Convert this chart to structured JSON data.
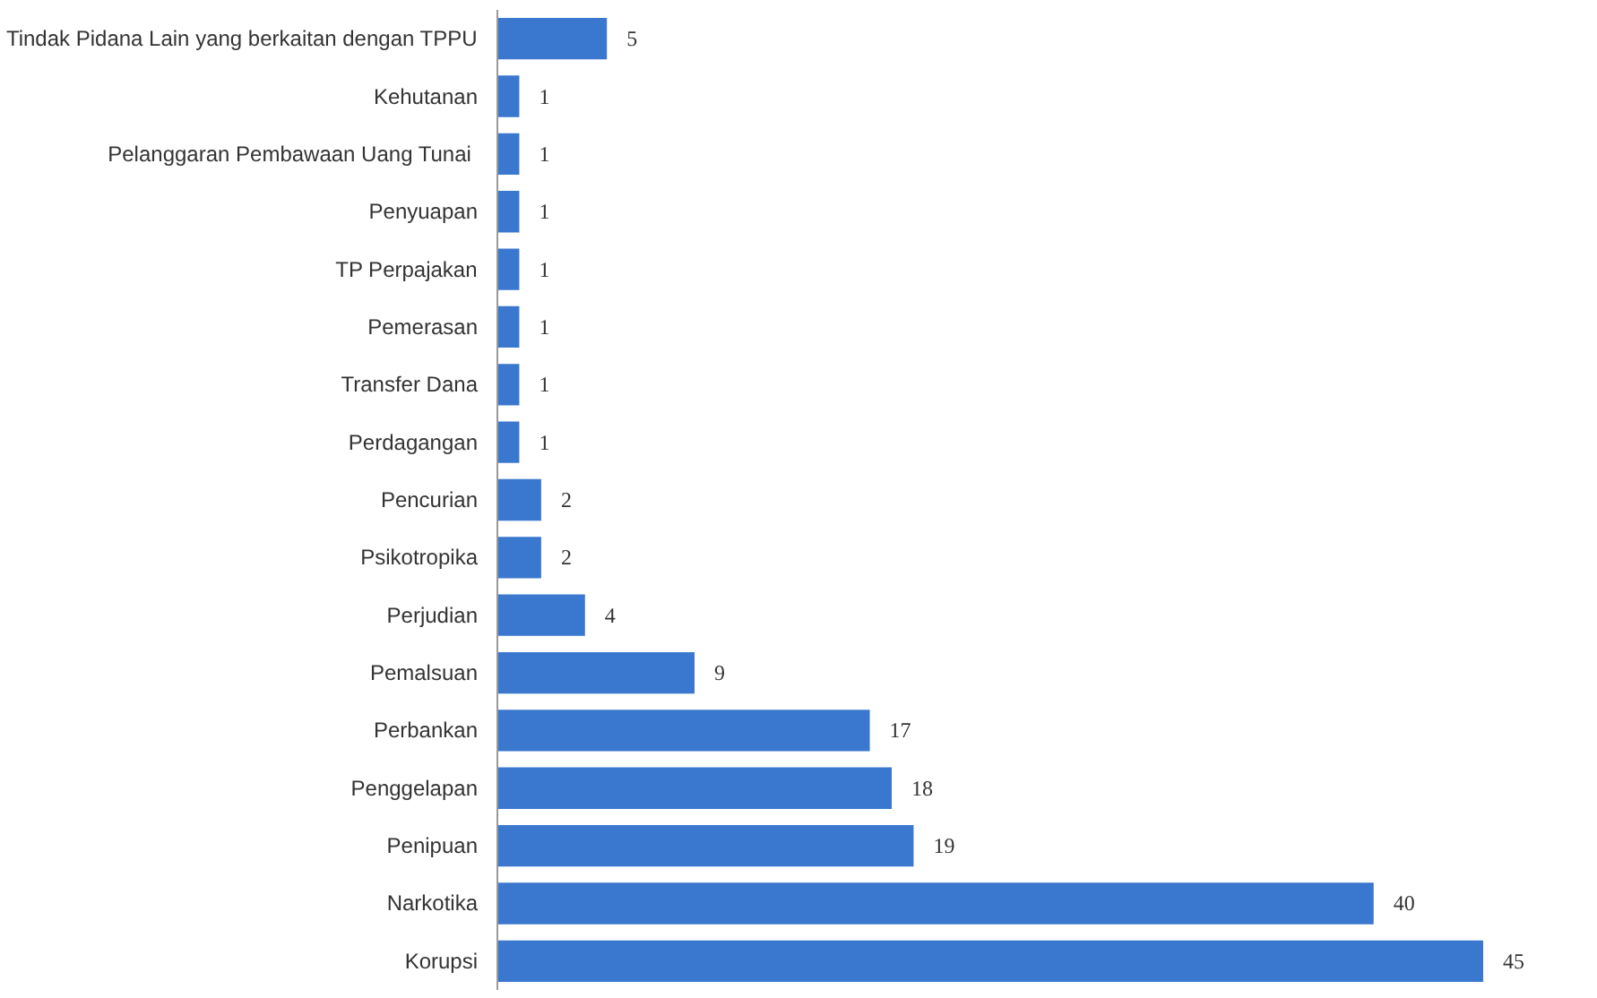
{
  "chart_data": {
    "type": "bar",
    "orientation": "horizontal",
    "categories": [
      "Tindak Pidana Lain yang berkaitan dengan TPPU",
      "Kehutanan",
      "Pelanggaran Pembawaan  Uang Tunai",
      "Penyuapan",
      "TP Perpajakan",
      "Pemerasan",
      "Transfer Dana",
      "Perdagangan",
      "Pencurian",
      "Psikotropika",
      "Perjudian",
      "Pemalsuan",
      "Perbankan",
      "Penggelapan",
      "Penipuan",
      "Narkotika",
      "Korupsi"
    ],
    "values": [
      5,
      1,
      1,
      1,
      1,
      1,
      1,
      1,
      2,
      2,
      4,
      9,
      17,
      18,
      19,
      40,
      45
    ],
    "color": "#3a78d0",
    "data_labels": true,
    "tick_labels": "y"
  }
}
